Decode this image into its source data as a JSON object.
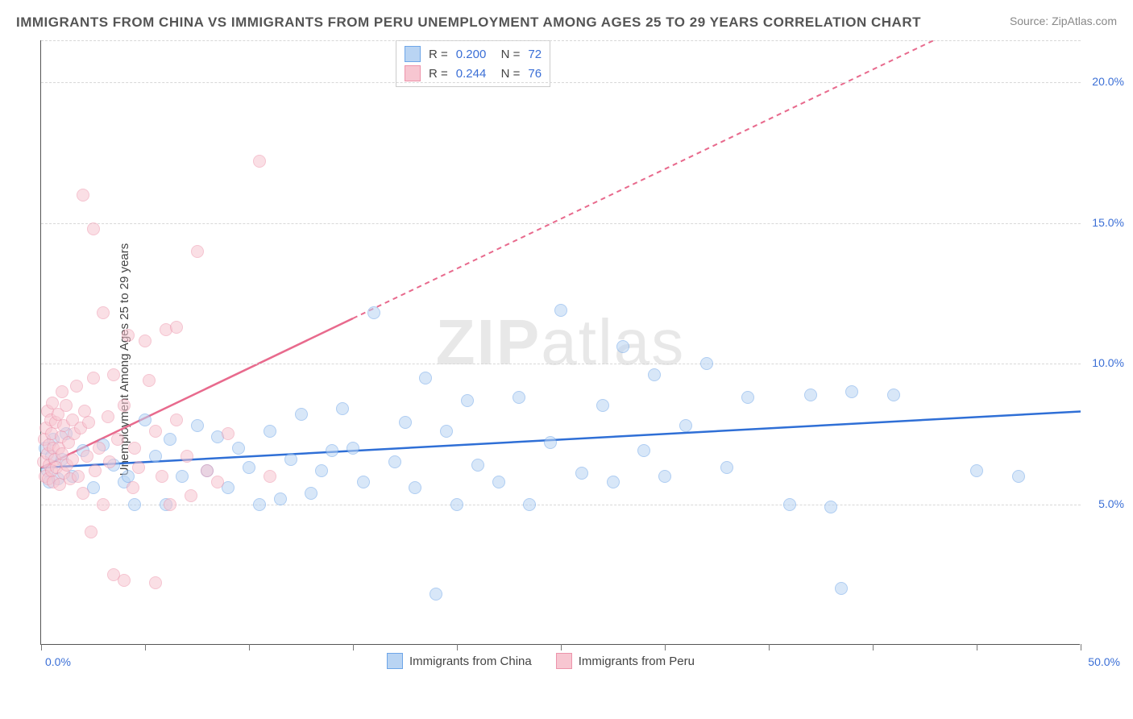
{
  "title": "IMMIGRANTS FROM CHINA VS IMMIGRANTS FROM PERU UNEMPLOYMENT AMONG AGES 25 TO 29 YEARS CORRELATION CHART",
  "source": "Source: ZipAtlas.com",
  "ylabel": "Unemployment Among Ages 25 to 29 years",
  "watermark_bold": "ZIP",
  "watermark_light": "atlas",
  "chart": {
    "type": "scatter",
    "xlim": [
      0,
      50
    ],
    "ylim": [
      0,
      21.5
    ],
    "x_tick_left": "0.0%",
    "x_tick_right": "50.0%",
    "y_ticks": [
      {
        "val": 5.0,
        "label": "5.0%"
      },
      {
        "val": 10.0,
        "label": "10.0%"
      },
      {
        "val": 15.0,
        "label": "15.0%"
      },
      {
        "val": 20.0,
        "label": "20.0%"
      }
    ],
    "x_tick_positions": [
      0,
      5,
      10,
      15,
      20,
      25,
      30,
      35,
      40,
      45,
      50
    ],
    "grid_color": "#d8d8d8",
    "background_color": "#ffffff",
    "marker_radius": 8,
    "series": [
      {
        "name": "Immigrants from China",
        "color_fill": "#b9d4f3",
        "color_border": "#6ea6e8",
        "line_color": "#2f6fd6",
        "line_dash": "none",
        "R": "0.200",
        "N": "72",
        "trend": {
          "y_at_x0": 6.3,
          "y_at_x50": 8.3
        },
        "points": [
          [
            0.2,
            7.0
          ],
          [
            0.3,
            6.2
          ],
          [
            0.4,
            5.8
          ],
          [
            0.5,
            6.7
          ],
          [
            0.6,
            7.3
          ],
          [
            0.8,
            5.9
          ],
          [
            1.0,
            6.6
          ],
          [
            1.2,
            7.5
          ],
          [
            1.5,
            6.0
          ],
          [
            2.0,
            6.9
          ],
          [
            2.5,
            5.6
          ],
          [
            3.0,
            7.1
          ],
          [
            3.5,
            6.4
          ],
          [
            4.0,
            5.8
          ],
          [
            4.2,
            6.0
          ],
          [
            4.5,
            5.0
          ],
          [
            5.0,
            8.0
          ],
          [
            5.5,
            6.7
          ],
          [
            6.0,
            5.0
          ],
          [
            6.2,
            7.3
          ],
          [
            6.8,
            6.0
          ],
          [
            7.5,
            7.8
          ],
          [
            8.0,
            6.2
          ],
          [
            8.5,
            7.4
          ],
          [
            9.0,
            5.6
          ],
          [
            9.5,
            7.0
          ],
          [
            10.0,
            6.3
          ],
          [
            10.5,
            5.0
          ],
          [
            11.0,
            7.6
          ],
          [
            11.5,
            5.2
          ],
          [
            12.0,
            6.6
          ],
          [
            12.5,
            8.2
          ],
          [
            13.0,
            5.4
          ],
          [
            13.5,
            6.2
          ],
          [
            14.0,
            6.9
          ],
          [
            14.5,
            8.4
          ],
          [
            15.0,
            7.0
          ],
          [
            15.5,
            5.8
          ],
          [
            16.0,
            11.8
          ],
          [
            17.0,
            6.5
          ],
          [
            17.5,
            7.9
          ],
          [
            18.0,
            5.6
          ],
          [
            18.5,
            9.5
          ],
          [
            19.0,
            1.8
          ],
          [
            19.5,
            7.6
          ],
          [
            20.0,
            5.0
          ],
          [
            20.5,
            8.7
          ],
          [
            21.0,
            6.4
          ],
          [
            22.0,
            5.8
          ],
          [
            23.0,
            8.8
          ],
          [
            23.5,
            5.0
          ],
          [
            24.5,
            7.2
          ],
          [
            25.0,
            11.9
          ],
          [
            26.0,
            6.1
          ],
          [
            27.0,
            8.5
          ],
          [
            27.5,
            5.8
          ],
          [
            28.0,
            10.6
          ],
          [
            29.0,
            6.9
          ],
          [
            29.5,
            9.6
          ],
          [
            30.0,
            6.0
          ],
          [
            31.0,
            7.8
          ],
          [
            32.0,
            10.0
          ],
          [
            33.0,
            6.3
          ],
          [
            34.0,
            8.8
          ],
          [
            36.0,
            5.0
          ],
          [
            37.0,
            8.9
          ],
          [
            38.0,
            4.9
          ],
          [
            38.5,
            2.0
          ],
          [
            39.0,
            9.0
          ],
          [
            41.0,
            8.9
          ],
          [
            45.0,
            6.2
          ],
          [
            47.0,
            6.0
          ]
        ]
      },
      {
        "name": "Immigrants from Peru",
        "color_fill": "#f7c6d1",
        "color_border": "#ed94ab",
        "line_color": "#e86a8d",
        "line_dash": "6,5",
        "R": "0.244",
        "N": "76",
        "trend": {
          "y_at_x0": 6.3,
          "y_at_x50": 24.0
        },
        "points": [
          [
            0.1,
            6.5
          ],
          [
            0.15,
            7.3
          ],
          [
            0.2,
            6.0
          ],
          [
            0.25,
            7.7
          ],
          [
            0.3,
            6.8
          ],
          [
            0.3,
            8.3
          ],
          [
            0.35,
            5.9
          ],
          [
            0.4,
            7.1
          ],
          [
            0.4,
            6.4
          ],
          [
            0.45,
            8.0
          ],
          [
            0.5,
            7.5
          ],
          [
            0.5,
            6.2
          ],
          [
            0.55,
            8.6
          ],
          [
            0.6,
            5.8
          ],
          [
            0.6,
            7.0
          ],
          [
            0.65,
            6.6
          ],
          [
            0.7,
            7.9
          ],
          [
            0.75,
            6.3
          ],
          [
            0.8,
            8.2
          ],
          [
            0.85,
            7.0
          ],
          [
            0.9,
            5.7
          ],
          [
            0.95,
            7.4
          ],
          [
            1.0,
            6.8
          ],
          [
            1.0,
            9.0
          ],
          [
            1.1,
            6.1
          ],
          [
            1.1,
            7.8
          ],
          [
            1.2,
            8.5
          ],
          [
            1.25,
            6.4
          ],
          [
            1.3,
            7.2
          ],
          [
            1.4,
            5.9
          ],
          [
            1.5,
            8.0
          ],
          [
            1.5,
            6.6
          ],
          [
            1.6,
            7.5
          ],
          [
            1.7,
            9.2
          ],
          [
            1.8,
            6.0
          ],
          [
            1.9,
            7.7
          ],
          [
            2.0,
            16.0
          ],
          [
            2.0,
            5.4
          ],
          [
            2.1,
            8.3
          ],
          [
            2.2,
            6.7
          ],
          [
            2.3,
            7.9
          ],
          [
            2.4,
            4.0
          ],
          [
            2.5,
            14.8
          ],
          [
            2.5,
            9.5
          ],
          [
            2.6,
            6.2
          ],
          [
            2.8,
            7.0
          ],
          [
            3.0,
            11.8
          ],
          [
            3.0,
            5.0
          ],
          [
            3.2,
            8.1
          ],
          [
            3.3,
            6.5
          ],
          [
            3.5,
            9.6
          ],
          [
            3.5,
            2.5
          ],
          [
            3.7,
            7.3
          ],
          [
            4.0,
            2.3
          ],
          [
            4.0,
            8.5
          ],
          [
            4.2,
            11.0
          ],
          [
            4.4,
            5.6
          ],
          [
            4.5,
            7.0
          ],
          [
            4.7,
            6.3
          ],
          [
            5.0,
            10.8
          ],
          [
            5.2,
            9.4
          ],
          [
            5.5,
            2.2
          ],
          [
            5.5,
            7.6
          ],
          [
            5.8,
            6.0
          ],
          [
            6.0,
            11.2
          ],
          [
            6.2,
            5.0
          ],
          [
            6.5,
            11.3
          ],
          [
            6.5,
            8.0
          ],
          [
            7.0,
            6.7
          ],
          [
            7.2,
            5.3
          ],
          [
            7.5,
            14.0
          ],
          [
            8.0,
            6.2
          ],
          [
            8.5,
            5.8
          ],
          [
            9.0,
            7.5
          ],
          [
            10.5,
            17.2
          ],
          [
            11.0,
            6.0
          ]
        ]
      }
    ]
  },
  "legend_bottom": [
    {
      "label": "Immigrants from China",
      "fill": "#b9d4f3",
      "border": "#6ea6e8"
    },
    {
      "label": "Immigrants from Peru",
      "fill": "#f7c6d1",
      "border": "#ed94ab"
    }
  ]
}
